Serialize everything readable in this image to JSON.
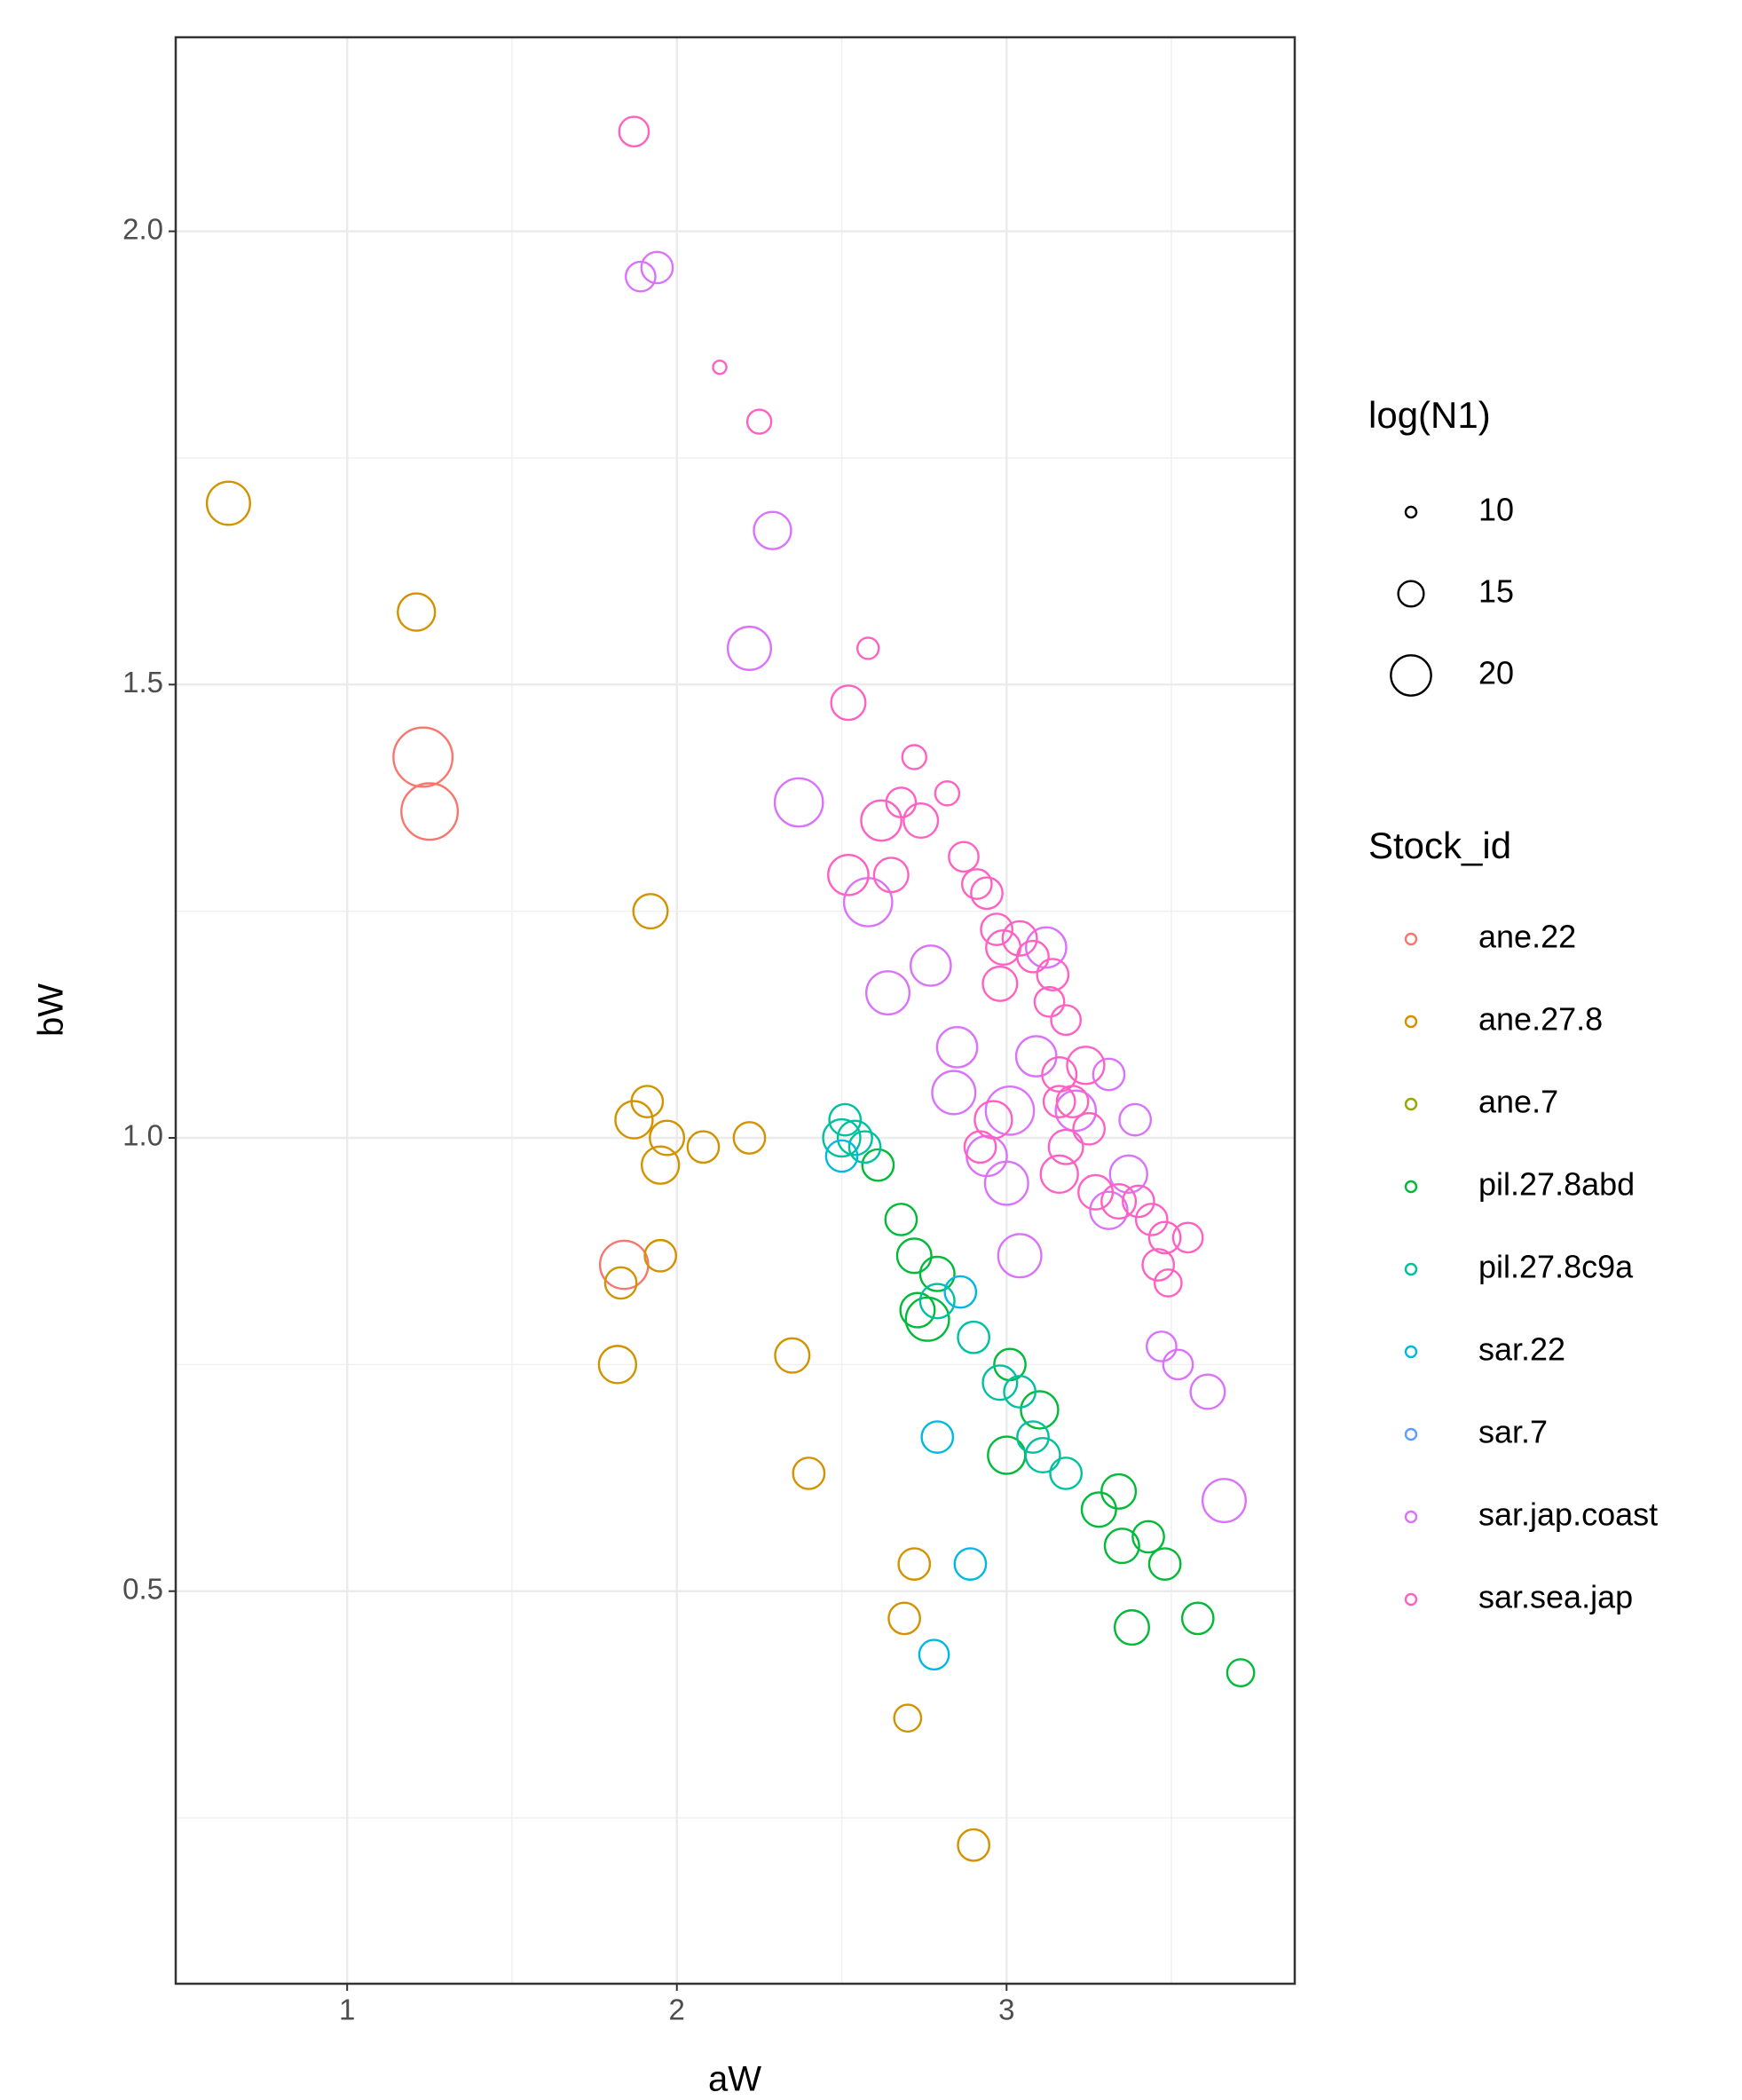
{
  "chart_data": {
    "type": "scatter",
    "x_label": "aW",
    "y_label": "bW",
    "xlim": [
      0.48,
      3.874
    ],
    "ylim": [
      0.067,
      2.214
    ],
    "xticks": [
      1,
      2,
      3
    ],
    "yticks": [
      {
        "value": 0.5,
        "label": "0.5"
      },
      {
        "value": 1,
        "label": "1.0"
      },
      {
        "value": 1.5,
        "label": "1.5"
      },
      {
        "value": 2,
        "label": "2.0"
      }
    ],
    "xminor": [
      1.5,
      2.5,
      3.5
    ],
    "yminor": [
      0.25,
      0.75,
      1.25,
      1.75
    ],
    "grid": true,
    "size_legend": {
      "title": "log(N1)",
      "values": [
        10,
        15,
        20
      ]
    },
    "color_legend_title": "Stock_id",
    "series": [
      {
        "name": "ane.22",
        "color": "#F8766D",
        "x": [
          1.23,
          1.25,
          1.84
        ],
        "y": [
          1.42,
          1.36,
          0.86
        ],
        "size": [
          26.4,
          25.5,
          22.7
        ]
      },
      {
        "name": "ane.27.8",
        "color": "#D39200",
        "x": [
          0.64,
          1.21,
          1.92,
          1.91,
          1.87,
          1.97,
          1.95,
          2.08,
          2.22,
          1.95,
          1.83,
          1.82,
          2.35,
          2.4,
          2.72,
          2.69,
          2.7,
          2.9
        ],
        "y": [
          1.7,
          1.58,
          1.25,
          1.04,
          1.02,
          1.0,
          0.97,
          0.99,
          1.0,
          0.87,
          0.84,
          0.75,
          0.76,
          0.63,
          0.53,
          0.47,
          0.36,
          0.22
        ],
        "size": [
          21,
          19,
          18,
          17,
          19,
          18,
          19,
          17,
          17,
          17,
          17,
          19,
          18,
          17,
          17,
          17,
          15.5,
          17
        ]
      },
      {
        "name": "ane.7",
        "color": "#93AA00",
        "x": [],
        "y": [],
        "size": []
      },
      {
        "name": "pil.27.8abd",
        "color": "#00BA38",
        "x": [
          3.71,
          3.58,
          3.38,
          3.48,
          3.43,
          3.35,
          3.34,
          3.28,
          3.1,
          3.0,
          3.01,
          2.76,
          2.73,
          2.79,
          2.72,
          2.68,
          2.61
        ],
        "y": [
          0.41,
          0.47,
          0.46,
          0.53,
          0.56,
          0.55,
          0.61,
          0.59,
          0.7,
          0.65,
          0.75,
          0.8,
          0.81,
          0.85,
          0.87,
          0.91,
          0.97
        ],
        "size": [
          15.5,
          17,
          18,
          17,
          17,
          18,
          18,
          18,
          19,
          19,
          17,
          21,
          18,
          18,
          18,
          17,
          17
        ]
      },
      {
        "name": "pil.27.8c9a",
        "color": "#00C19F",
        "x": [
          2.51,
          2.54,
          2.57,
          2.5,
          2.79,
          2.9,
          2.98,
          3.08,
          3.11,
          3.18,
          3.04
        ],
        "y": [
          1.02,
          1.0,
          0.99,
          1.0,
          0.82,
          0.78,
          0.73,
          0.67,
          0.65,
          0.63,
          0.72
        ],
        "size": [
          17,
          18,
          17,
          19,
          18,
          17,
          18,
          17,
          18,
          17,
          17
        ]
      },
      {
        "name": "sar.22",
        "color": "#00B9E3",
        "x": [
          2.5,
          2.86,
          2.79,
          2.89,
          2.78
        ],
        "y": [
          0.98,
          0.83,
          0.67,
          0.53,
          0.43
        ],
        "size": [
          17,
          17,
          17,
          17,
          16.4
        ]
      },
      {
        "name": "sar.7",
        "color": "#619CFF",
        "x": [],
        "y": [],
        "size": []
      },
      {
        "name": "sar.jap.coast",
        "color": "#DB72FB",
        "x": [
          1.89,
          1.94,
          2.29,
          2.22,
          2.37,
          2.58,
          2.64,
          2.77,
          2.85,
          2.84,
          3.01,
          3.0,
          3.04,
          3.09,
          3.12,
          3.21,
          3.31,
          3.39,
          3.37,
          3.47,
          3.52,
          3.61,
          3.66,
          3.31,
          2.94
        ],
        "y": [
          1.95,
          1.96,
          1.67,
          1.54,
          1.37,
          1.26,
          1.16,
          1.19,
          1.1,
          1.05,
          1.03,
          0.95,
          0.87,
          1.09,
          1.21,
          1.03,
          1.07,
          1.02,
          0.96,
          0.77,
          0.75,
          0.72,
          0.6,
          0.92,
          0.98
        ],
        "size": [
          16.4,
          17,
          19,
          21,
          22.7,
          22.7,
          21,
          20,
          20,
          21,
          22.7,
          21,
          21,
          20,
          20,
          20,
          17,
          17,
          19,
          16.4,
          16.4,
          18,
          21,
          19,
          20
        ]
      },
      {
        "name": "sar.sea.jap",
        "color": "#FF61C3",
        "x": [
          1.87,
          2.13,
          2.25,
          2.58,
          2.52,
          2.72,
          2.68,
          2.82,
          2.62,
          2.74,
          2.52,
          2.65,
          2.87,
          2.91,
          2.94,
          2.97,
          2.99,
          3.04,
          3.08,
          3.14,
          3.18,
          3.13,
          3.16,
          3.2,
          3.25,
          3.18,
          3.16,
          3.27,
          3.34,
          3.4,
          3.44,
          3.48,
          3.55,
          3.46,
          3.49,
          2.98,
          2.92,
          2.96,
          3.24,
          3.16
        ],
        "y": [
          2.11,
          1.85,
          1.79,
          1.54,
          1.48,
          1.42,
          1.37,
          1.38,
          1.35,
          1.35,
          1.29,
          1.29,
          1.31,
          1.28,
          1.27,
          1.23,
          1.21,
          1.22,
          1.2,
          1.18,
          1.13,
          1.15,
          1.07,
          1.04,
          1.01,
          0.99,
          0.96,
          0.94,
          0.93,
          0.93,
          0.91,
          0.89,
          0.89,
          0.86,
          0.84,
          1.17,
          0.99,
          1.02,
          1.08,
          1.04
        ],
        "size": [
          16.4,
          10.9,
          14.5,
          13.6,
          18,
          14.5,
          16.4,
          14.5,
          20,
          18,
          20,
          18,
          16.4,
          16.4,
          17,
          17,
          18,
          18,
          17,
          17,
          16.4,
          16.4,
          18,
          17,
          17,
          18,
          19,
          18,
          18,
          17,
          17,
          17,
          16.4,
          17,
          15.5,
          18,
          17,
          19,
          19,
          17
        ]
      }
    ]
  }
}
